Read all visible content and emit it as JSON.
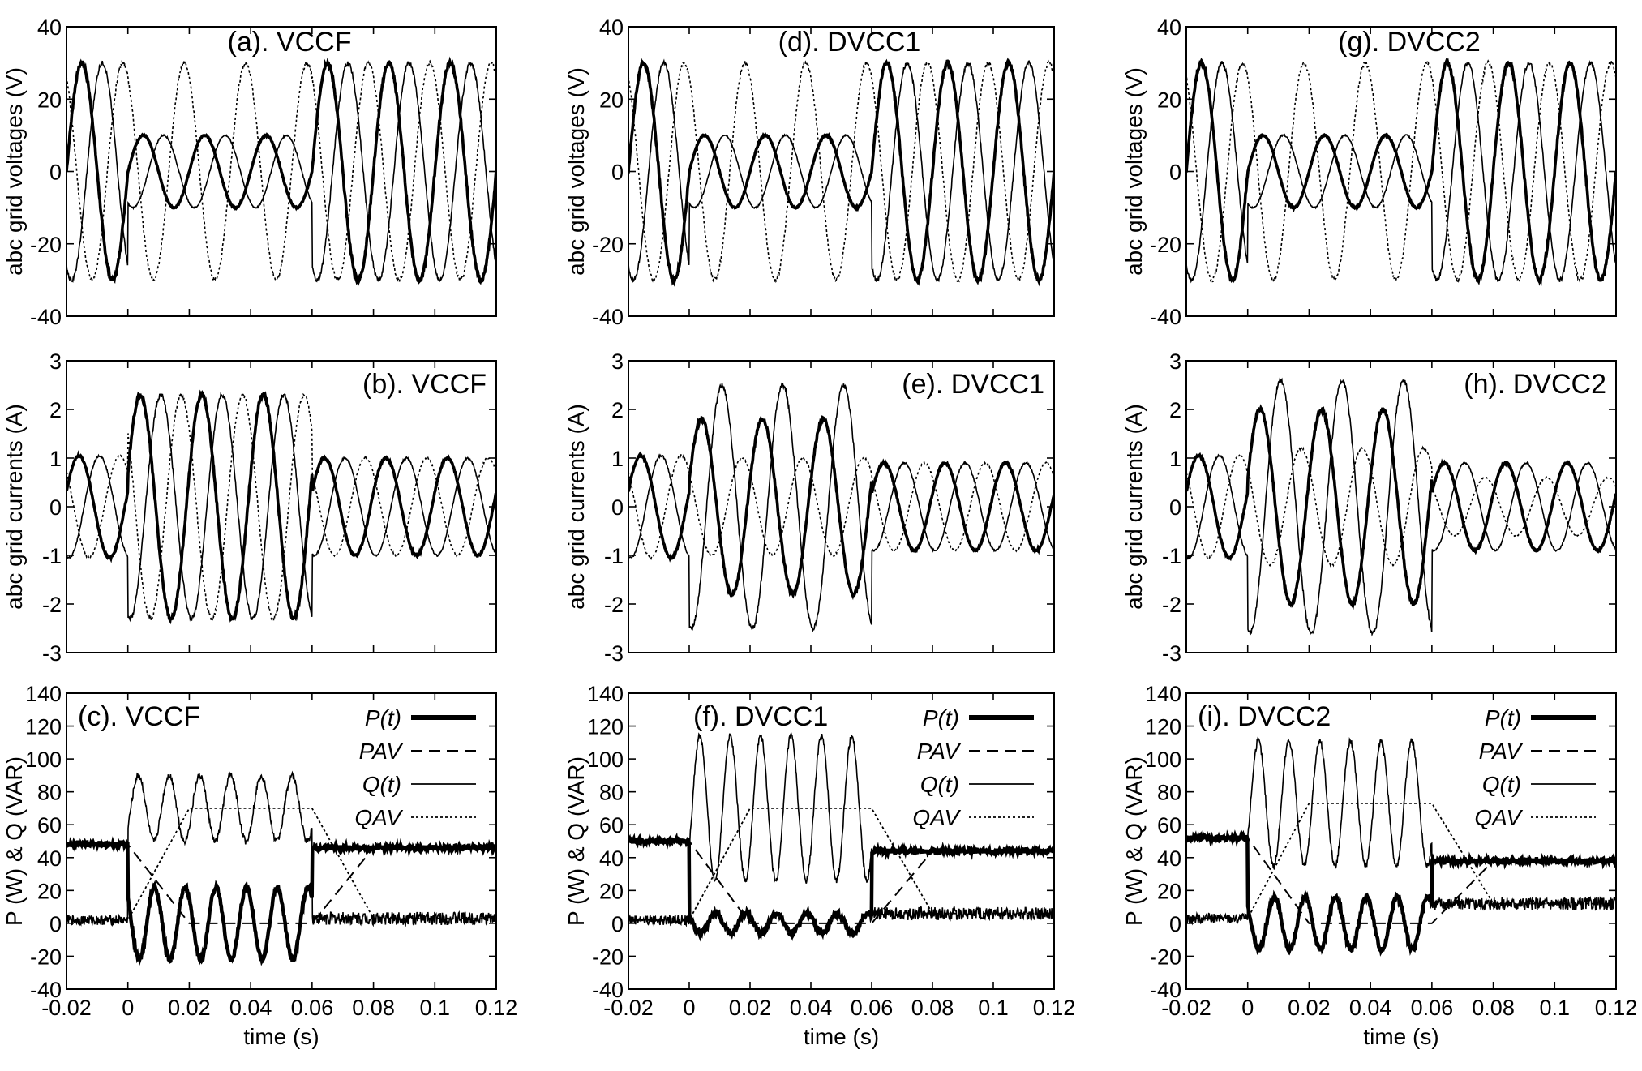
{
  "figure": {
    "time_axis_label": "time (s)",
    "x_ticks": [
      "-0.02",
      "0",
      "0.02",
      "0.04",
      "0.06",
      "0.08",
      "0.1",
      "0.12"
    ]
  },
  "chart_data": [
    {
      "id": "a",
      "type": "line",
      "title": "(a). VCCF",
      "xlabel": "",
      "ylabel": "abc grid voltages (V)",
      "xlim": [
        -0.02,
        0.12
      ],
      "ylim": [
        -40,
        40
      ],
      "y_ticks": [
        "40",
        "20",
        "0",
        "-20",
        "-40"
      ],
      "grid": false,
      "series": [
        {
          "style": "thick",
          "amp": [
            30,
            10,
            30
          ],
          "phase": 0
        },
        {
          "style": "thin",
          "amp": [
            30,
            10,
            30
          ],
          "phase": -2.094
        },
        {
          "style": "dotted",
          "amp": [
            30,
            30,
            30
          ],
          "phase": 2.094
        }
      ]
    },
    {
      "id": "b",
      "type": "line",
      "title": "(b). VCCF",
      "xlabel": "",
      "ylabel": "abc grid currents (A)",
      "xlim": [
        -0.02,
        0.12
      ],
      "ylim": [
        -3,
        3
      ],
      "y_ticks": [
        "3",
        "2",
        "1",
        "0",
        "-1",
        "-2",
        "-3"
      ],
      "grid": false,
      "series": [
        {
          "style": "thick",
          "amp": [
            1.05,
            2.3,
            1.0
          ],
          "phase": 0.3
        },
        {
          "style": "thin",
          "amp": [
            1.05,
            2.3,
            1.0
          ],
          "phase": -1.8
        },
        {
          "style": "dotted",
          "amp": [
            1.05,
            2.3,
            1.0
          ],
          "phase": 2.4
        }
      ]
    },
    {
      "id": "c",
      "type": "line",
      "title": "(c). VCCF",
      "xlabel": "time (s)",
      "ylabel": "P (W) & Q (VAR)",
      "xlim": [
        -0.02,
        0.12
      ],
      "ylim": [
        -40,
        140
      ],
      "y_ticks": [
        "140",
        "120",
        "100",
        "80",
        "60",
        "40",
        "20",
        "0",
        "-20",
        "-40"
      ],
      "grid": false,
      "legend": [
        "P(t)",
        "PAV",
        "Q(t)",
        "QAV"
      ],
      "power": {
        "p_pre": 48,
        "p_sag_mean": 0,
        "p_sag_amp": 22,
        "p_post": 46,
        "q_pre": 2,
        "q_sag_mean": 70,
        "q_sag_amp": 20,
        "q_post": 3
      }
    },
    {
      "id": "d",
      "type": "line",
      "title": "(d). DVCC1",
      "xlabel": "",
      "ylabel": "abc grid voltages (V)",
      "xlim": [
        -0.02,
        0.12
      ],
      "ylim": [
        -40,
        40
      ],
      "y_ticks": [
        "40",
        "20",
        "0",
        "-20",
        "-40"
      ],
      "grid": false,
      "series": [
        {
          "style": "thick",
          "amp": [
            30,
            10,
            30
          ],
          "phase": 0
        },
        {
          "style": "thin",
          "amp": [
            30,
            10,
            30
          ],
          "phase": -2.094
        },
        {
          "style": "dotted",
          "amp": [
            30,
            30,
            30
          ],
          "phase": 2.094
        }
      ]
    },
    {
      "id": "e",
      "type": "line",
      "title": "(e). DVCC1",
      "xlabel": "",
      "ylabel": "abc grid currents (A)",
      "xlim": [
        -0.02,
        0.12
      ],
      "ylim": [
        -3,
        3
      ],
      "y_ticks": [
        "3",
        "2",
        "1",
        "0",
        "-1",
        "-2",
        "-3"
      ],
      "grid": false,
      "series": [
        {
          "style": "thick",
          "amp": [
            1.05,
            1.8,
            0.9
          ],
          "phase": 0.3
        },
        {
          "style": "thin",
          "amp": [
            1.05,
            2.5,
            0.9
          ],
          "phase": -1.8
        },
        {
          "style": "dotted",
          "amp": [
            1.05,
            1.0,
            0.9
          ],
          "phase": 2.4
        }
      ]
    },
    {
      "id": "f",
      "type": "line",
      "title": "(f). DVCC1",
      "xlabel": "time (s)",
      "ylabel": "P (W) & Q (VAR)",
      "xlim": [
        -0.02,
        0.12
      ],
      "ylim": [
        -40,
        140
      ],
      "y_ticks": [
        "140",
        "120",
        "100",
        "80",
        "60",
        "40",
        "20",
        "0",
        "-20",
        "-40"
      ],
      "grid": false,
      "legend": [
        "P(t)",
        "PAV",
        "Q(t)",
        "QAV"
      ],
      "power": {
        "p_pre": 50,
        "p_sag_mean": 0,
        "p_sag_amp": 6,
        "p_post": 44,
        "q_pre": 2,
        "q_sag_mean": 70,
        "q_sag_amp": 44,
        "q_post": 6
      }
    },
    {
      "id": "g",
      "type": "line",
      "title": "(g). DVCC2",
      "xlabel": "",
      "ylabel": "abc grid voltages (V)",
      "xlim": [
        -0.02,
        0.12
      ],
      "ylim": [
        -40,
        40
      ],
      "y_ticks": [
        "40",
        "20",
        "0",
        "-20",
        "-40"
      ],
      "grid": false,
      "series": [
        {
          "style": "thick",
          "amp": [
            30,
            10,
            30
          ],
          "phase": 0
        },
        {
          "style": "thin",
          "amp": [
            30,
            10,
            30
          ],
          "phase": -2.094
        },
        {
          "style": "dotted",
          "amp": [
            30,
            30,
            30
          ],
          "phase": 2.094
        }
      ]
    },
    {
      "id": "h",
      "type": "line",
      "title": "(h). DVCC2",
      "xlabel": "",
      "ylabel": "abc grid currents (A)",
      "xlim": [
        -0.02,
        0.12
      ],
      "ylim": [
        -3,
        3
      ],
      "y_ticks": [
        "3",
        "2",
        "1",
        "0",
        "-1",
        "-2",
        "-3"
      ],
      "grid": false,
      "series": [
        {
          "style": "thick",
          "amp": [
            1.05,
            2.0,
            0.9
          ],
          "phase": 0.3
        },
        {
          "style": "thin",
          "amp": [
            1.05,
            2.6,
            0.9
          ],
          "phase": -1.8
        },
        {
          "style": "dotted",
          "amp": [
            1.05,
            1.2,
            0.6
          ],
          "phase": 2.4
        }
      ]
    },
    {
      "id": "i",
      "type": "line",
      "title": "(i). DVCC2",
      "xlabel": "time (s)",
      "ylabel": "P (W) & Q (VAR)",
      "xlim": [
        -0.02,
        0.12
      ],
      "ylim": [
        -40,
        140
      ],
      "y_ticks": [
        "140",
        "120",
        "100",
        "80",
        "60",
        "40",
        "20",
        "0",
        "-20",
        "-40"
      ],
      "grid": false,
      "legend": [
        "P(t)",
        "PAV",
        "Q(t)",
        "QAV"
      ],
      "power": {
        "p_pre": 52,
        "p_sag_mean": 0,
        "p_sag_amp": 16,
        "p_post": 38,
        "q_pre": 3,
        "q_sag_mean": 73,
        "q_sag_amp": 38,
        "q_post": 12
      }
    }
  ]
}
